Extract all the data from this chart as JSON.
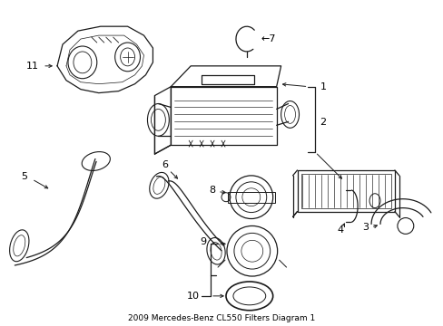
{
  "title": "2009 Mercedes-Benz CL550 Filters Diagram 1",
  "bg_color": "#ffffff",
  "line_color": "#1a1a1a",
  "label_color": "#000000",
  "figsize": [
    4.89,
    3.6
  ],
  "dpi": 100,
  "lw_main": 0.9,
  "lw_thin": 0.5,
  "label_fs": 8.0
}
